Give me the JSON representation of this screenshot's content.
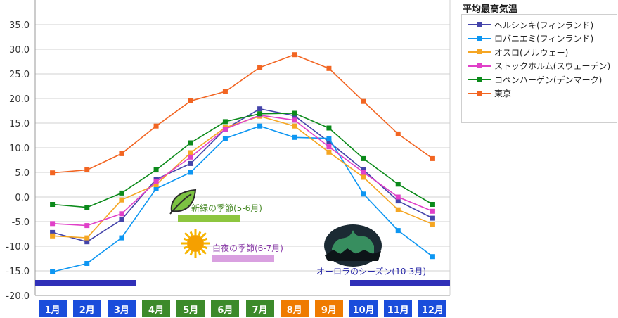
{
  "chart_data": {
    "type": "line",
    "categories": [
      "1月",
      "2月",
      "3月",
      "4月",
      "5月",
      "6月",
      "7月",
      "8月",
      "9月",
      "10月",
      "11月",
      "12月"
    ],
    "y_ticks": [
      "35.0",
      "30.0",
      "25.0",
      "20.0",
      "15.0",
      "10.0",
      "5.0",
      "0.0",
      "-5.0",
      "-10.0",
      "-15.0",
      "-20.0"
    ],
    "ylim": [
      -20,
      35
    ],
    "grid": "horizontal",
    "legend_title": "平均最高気温",
    "legend_placement": "right",
    "series": [
      {
        "name": "ヘルシンキ(フィンランド)",
        "color": "#4444aa",
        "values": [
          -7.2,
          -9.1,
          -4.6,
          3.6,
          6.8,
          13.8,
          17.9,
          16.5,
          11.2,
          5.5,
          -0.8,
          -4.3
        ]
      },
      {
        "name": "ロバニエミ(フィンランド)",
        "color": "#0d96f2",
        "values": [
          -15.2,
          -13.5,
          -8.3,
          1.7,
          5.0,
          11.9,
          14.4,
          12.1,
          11.9,
          0.6,
          -6.8,
          -12.1
        ]
      },
      {
        "name": "オスロ(ノルウェー)",
        "color": "#f5a623",
        "values": [
          -7.9,
          -8.3,
          -0.6,
          2.5,
          9.0,
          14.1,
          16.4,
          14.4,
          9.1,
          4.0,
          -2.6,
          -5.5
        ]
      },
      {
        "name": "ストックホルム(スウェーデン)",
        "color": "#e040c8",
        "values": [
          -5.4,
          -5.8,
          -3.4,
          3.1,
          8.1,
          13.8,
          16.6,
          15.6,
          10.2,
          5.0,
          0.0,
          -2.9
        ]
      },
      {
        "name": "コペンハーゲン(デンマーク)",
        "color": "#0b8a1a",
        "values": [
          -1.5,
          -2.1,
          0.8,
          5.5,
          11.0,
          15.3,
          16.9,
          17.0,
          14.0,
          7.8,
          2.6,
          -1.5
        ]
      },
      {
        "name": "東京",
        "color": "#f26522",
        "values": [
          4.9,
          5.5,
          8.8,
          14.4,
          19.5,
          21.4,
          26.3,
          28.9,
          26.1,
          19.4,
          12.8,
          7.8
        ]
      }
    ],
    "month_colors": [
      "#1a4ddb",
      "#1a4ddb",
      "#1a4ddb",
      "#3c8a2a",
      "#3c8a2a",
      "#3c8a2a",
      "#3c8a2a",
      "#ef7b00",
      "#ef7b00",
      "#1a4ddb",
      "#1a4ddb",
      "#1a4ddb"
    ],
    "annotations": [
      {
        "label": "新緑の季節(5-6月)",
        "color": "#4c8c2b",
        "bar_color": "#8dc63f",
        "icon": "leaf-icon"
      },
      {
        "label": "白夜の季節(6-7月)",
        "color": "#8a3aa8",
        "bar_color": "#d9a0e0",
        "icon": "sun-icon"
      },
      {
        "label": "オーロラのシーズン(10-3月)",
        "color": "#2a2aa8",
        "bar_color": "#3030b8",
        "icon": "aurora-icon"
      }
    ]
  }
}
